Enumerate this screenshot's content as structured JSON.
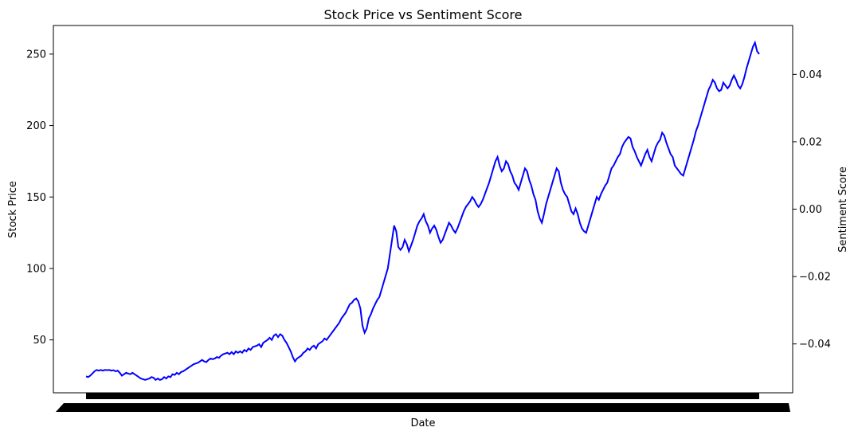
{
  "chart_data": {
    "type": "line",
    "title": "Stock Price vs Sentiment Score",
    "xlabel": "Date",
    "ylabel": "Stock Price",
    "y2label": "Sentiment Score",
    "ylim": [
      13,
      270
    ],
    "y_ticks": [
      50,
      100,
      150,
      200,
      250
    ],
    "y2lim": [
      -0.0545,
      0.0545
    ],
    "y2_ticks": [
      -0.04,
      -0.02,
      0.0,
      0.02,
      0.04
    ],
    "y2_tick_labels": [
      "−0.04",
      "−0.02",
      "0.00",
      "0.02",
      "0.04"
    ],
    "x_tick_labels_note": "dense overlapping date tick labels rendered as a solid black band",
    "grid": false,
    "line_color": "#0000ff",
    "series": [
      {
        "values": [
          24.5,
          24,
          25,
          26.5,
          28,
          29,
          28.5,
          29,
          28.5,
          29,
          28.8,
          29,
          28.5,
          28.8,
          28,
          28.5,
          27,
          25,
          26,
          27,
          26.5,
          26,
          27,
          26,
          25,
          24,
          23,
          22.5,
          22,
          22.5,
          23,
          24,
          23.5,
          22,
          23,
          22,
          22.5,
          24,
          23,
          24.5,
          24,
          26,
          25.5,
          27,
          26,
          27.5,
          28,
          29,
          30,
          31,
          32,
          33,
          33.5,
          34,
          35,
          36,
          35,
          34.5,
          36,
          37,
          36.5,
          37,
          38,
          37.5,
          39,
          40,
          40.5,
          41,
          40,
          41.5,
          40,
          42,
          41,
          42,
          41,
          43,
          42,
          44,
          43,
          45,
          45.5,
          46,
          47,
          45,
          48,
          49,
          50,
          51.5,
          50,
          53,
          54,
          52,
          54,
          53,
          50,
          48,
          45,
          42,
          38,
          35,
          37,
          38,
          39,
          41,
          42,
          44,
          43,
          45,
          46,
          44,
          47,
          48,
          49,
          51,
          50,
          52,
          54,
          56,
          58,
          60,
          62,
          65,
          67,
          69,
          72,
          75,
          76,
          78,
          79,
          77,
          72,
          60,
          55,
          58,
          65,
          68,
          72,
          75,
          78,
          80,
          85,
          90,
          95,
          100,
          110,
          120,
          130,
          126,
          115,
          113,
          115,
          120,
          117,
          112,
          116,
          120,
          125,
          130,
          133,
          135,
          138,
          133,
          130,
          125,
          128,
          130,
          127,
          122,
          118,
          120,
          124,
          128,
          132,
          130,
          127,
          125,
          128,
          132,
          136,
          140,
          143,
          145,
          147,
          150,
          148,
          145,
          143,
          145,
          148,
          152,
          156,
          160,
          165,
          170,
          175,
          178,
          172,
          168,
          170,
          175,
          173,
          168,
          165,
          160,
          158,
          155,
          160,
          165,
          170,
          168,
          162,
          158,
          152,
          148,
          140,
          135,
          132,
          138,
          145,
          150,
          155,
          160,
          165,
          170,
          168,
          160,
          155,
          152,
          150,
          145,
          140,
          138,
          142,
          138,
          132,
          128,
          126,
          125,
          130,
          135,
          140,
          145,
          150,
          148,
          152,
          155,
          158,
          160,
          165,
          170,
          172,
          175,
          178,
          180,
          185,
          188,
          190,
          192,
          191,
          185,
          182,
          178,
          175,
          172,
          176,
          180,
          183,
          178,
          175,
          180,
          185,
          188,
          190,
          195,
          193,
          188,
          184,
          180,
          178,
          172,
          170,
          168,
          166,
          165,
          170,
          175,
          180,
          185,
          190,
          196,
          200,
          205,
          210,
          215,
          220,
          225,
          228,
          232,
          230,
          226,
          224,
          225,
          230,
          228,
          226,
          228,
          232,
          235,
          232,
          228,
          226,
          229,
          234,
          240,
          245,
          250,
          255,
          258,
          252,
          250
        ]
      }
    ]
  }
}
